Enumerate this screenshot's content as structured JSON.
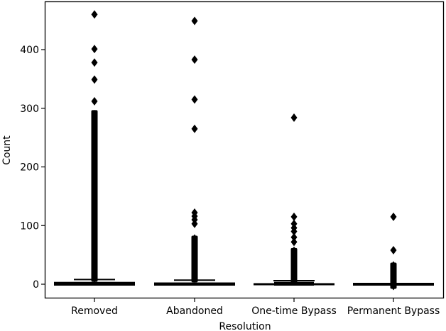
{
  "chart_data": {
    "type": "box",
    "title": "",
    "xlabel": "Resolution",
    "ylabel": "Count",
    "ylim": [
      -22,
      483
    ],
    "yticks": [
      0,
      100,
      200,
      300,
      400
    ],
    "grid": false,
    "legend": null,
    "categories": [
      "Removed",
      "Abandoned",
      "One-time Bypass",
      "Permanent Bypass"
    ],
    "series": [
      {
        "name": "Removed",
        "q1": 0,
        "median": 2,
        "q3": 4,
        "whisker_low": 0,
        "whisker_high": 8,
        "outliers_dense_range": [
          9,
          292
        ],
        "outliers": [
          460,
          401,
          378,
          349,
          312,
          290,
          285,
          280,
          270,
          260,
          250,
          240,
          230,
          225,
          205,
          200,
          195,
          170,
          160,
          150,
          140,
          130,
          120,
          110,
          100,
          90,
          80,
          70,
          60,
          50,
          40,
          30,
          20,
          10
        ]
      },
      {
        "name": "Abandoned",
        "q1": 0,
        "median": 1,
        "q3": 3,
        "whisker_low": 0,
        "whisker_high": 7,
        "outliers_dense_range": [
          8,
          78
        ],
        "outliers": [
          449,
          383,
          315,
          265,
          122,
          116,
          110,
          103,
          78,
          70,
          60,
          50,
          40,
          30,
          20,
          10
        ]
      },
      {
        "name": "One-time Bypass",
        "q1": 1,
        "median": 2,
        "q3": 4,
        "whisker_low": 0,
        "whisker_high": 6,
        "outliers_dense_range": [
          7,
          57
        ],
        "outliers": [
          284,
          115,
          103,
          96,
          90,
          80,
          72,
          57,
          50,
          40,
          30,
          20,
          10
        ]
      },
      {
        "name": "Permanent Bypass",
        "q1": 0,
        "median": 0,
        "q3": 0,
        "whisker_low": 0,
        "whisker_high": 0,
        "outliers_dense_range": [
          -3,
          32
        ],
        "outliers": [
          115,
          58,
          32,
          25,
          18,
          12,
          6,
          2,
          -3
        ]
      }
    ]
  }
}
